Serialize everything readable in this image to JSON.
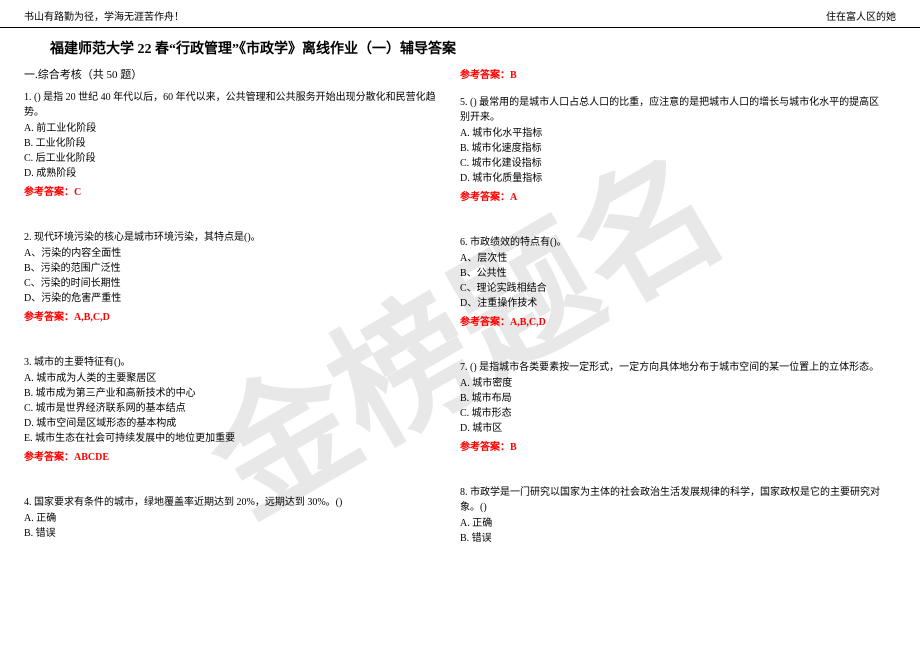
{
  "header": {
    "left": "书山有路勤为径，学海无涯苦作舟！",
    "right": "住在富人区的她"
  },
  "watermark": "金榜题名",
  "title": "福建师范大学 22 春“行政管理”《市政学》离线作业（一）辅导答案",
  "section": "一.综合考核（共 50 题）",
  "questions_left": [
    {
      "text": "1. () 是指 20 世纪 40 年代以后，60 年代以来，公共管理和公共服务开始出现分散化和民营化趋势。",
      "options": [
        "A. 前工业化阶段",
        "B. 工业化阶段",
        "C. 后工业化阶段",
        "D. 成熟阶段"
      ],
      "answer": "参考答案：C"
    },
    {
      "text": "2. 现代环境污染的核心是城市环境污染，其特点是()。",
      "options": [
        "A、污染的内容全面性",
        "B、污染的范围广泛性",
        "C、污染的时间长期性",
        "D、污染的危害严重性"
      ],
      "answer": "参考答案：A,B,C,D"
    },
    {
      "text": "3. 城市的主要特征有()。",
      "options": [
        "A. 城市成为人类的主要聚居区",
        "B. 城市成为第三产业和高新技术的中心",
        "C. 城市是世界经济联系网的基本结点",
        "D. 城市空间是区域形态的基本构成",
        "E. 城市生态在社会可持续发展中的地位更加重要"
      ],
      "answer": "参考答案：ABCDE"
    },
    {
      "text": "4. 国家要求有条件的城市，绿地覆盖率近期达到 20%，远期达到 30%。()",
      "options": [
        "A. 正确",
        "B. 错误"
      ],
      "answer": ""
    }
  ],
  "right_top_answer": "参考答案：B",
  "questions_right": [
    {
      "text": "5. () 最常用的是城市人口占总人口的比重，应注意的是把城市人口的增长与城市化水平的提高区别开来。",
      "options": [
        "A. 城市化水平指标",
        "B. 城市化速度指标",
        "C. 城市化建设指标",
        "D. 城市化质量指标"
      ],
      "answer": "参考答案：A"
    },
    {
      "text": "6. 市政绩效的特点有()。",
      "options": [
        "A、层次性",
        "B、公共性",
        "C、理论实践相结合",
        "D、注重操作技术"
      ],
      "answer": "参考答案：A,B,C,D"
    },
    {
      "text": "7. () 是指城市各类要素按一定形式，一定方向具体地分布于城市空间的某一位置上的立体形态。",
      "options": [
        "A. 城市密度",
        "B. 城市布局",
        "C. 城市形态",
        "D. 城市区"
      ],
      "answer": "参考答案：B"
    },
    {
      "text": "8. 市政学是一门研究以国家为主体的社会政治生活发展规律的科学，国家政权是它的主要研究对象。()",
      "options": [
        "A. 正确",
        "B. 错误"
      ],
      "answer": ""
    }
  ],
  "colors": {
    "answer_color": "#ff0000",
    "text_color": "#000000",
    "watermark_color": "#e8e8e8"
  }
}
